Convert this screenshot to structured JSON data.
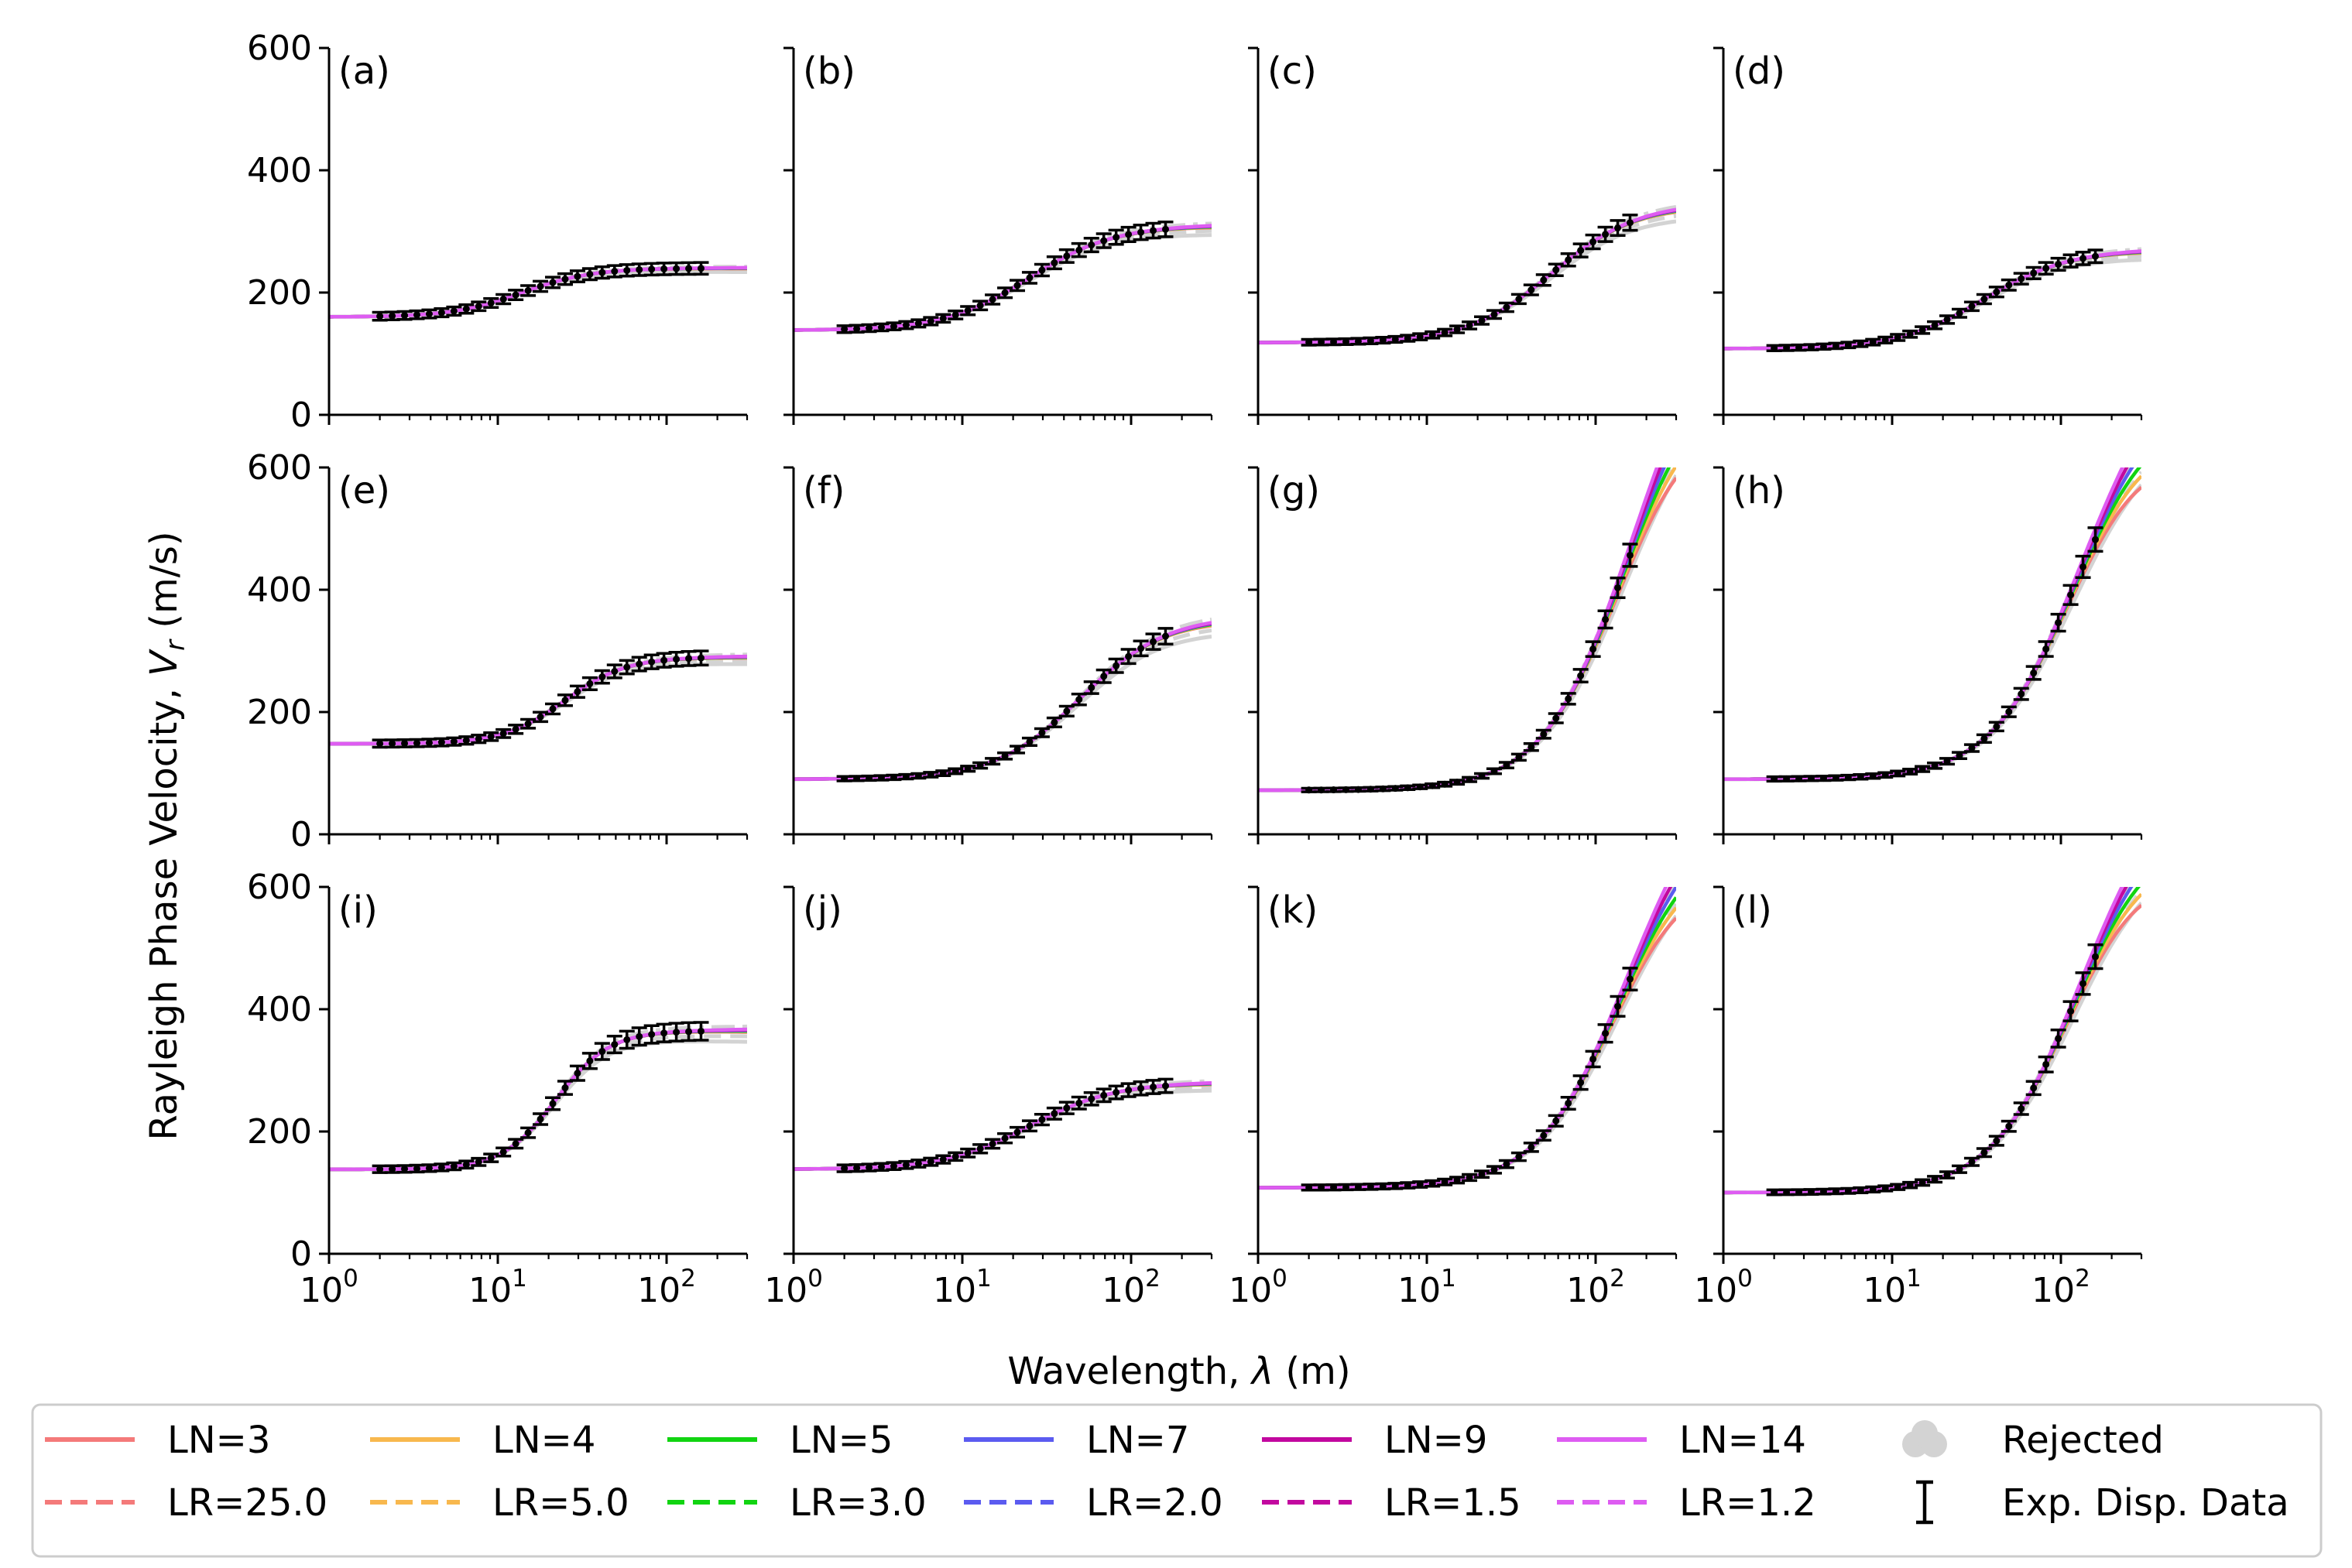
{
  "figure": {
    "ylabel": "Rayleigh Phase Velocity, V_r (m/s)",
    "xlabel": "Wavelength, λ (m)"
  },
  "legend": {
    "items": [
      {
        "label": "LN=3",
        "color": "#f47a7a",
        "style": "solid"
      },
      {
        "label": "LR=25.0",
        "color": "#f47a7a",
        "style": "dashed"
      },
      {
        "label": "LN=4",
        "color": "#f8b84e",
        "style": "solid"
      },
      {
        "label": "LR=5.0",
        "color": "#f8b84e",
        "style": "dashed"
      },
      {
        "label": "LN=5",
        "color": "#11d411",
        "style": "solid"
      },
      {
        "label": "LR=3.0",
        "color": "#11d411",
        "style": "dashed"
      },
      {
        "label": "LN=7",
        "color": "#5b5bf0",
        "style": "solid"
      },
      {
        "label": "LR=2.0",
        "color": "#5b5bf0",
        "style": "dashed"
      },
      {
        "label": "LN=9",
        "color": "#c2089f",
        "style": "solid"
      },
      {
        "label": "LR=1.5",
        "color": "#c2089f",
        "style": "dashed"
      },
      {
        "label": "LN=14",
        "color": "#de5cf2",
        "style": "solid"
      },
      {
        "label": "LR=1.2",
        "color": "#de5cf2",
        "style": "dashed"
      },
      {
        "label": "Rejected",
        "color": "#d3d3d3",
        "style": "patch"
      },
      {
        "label": "Exp. Disp. Data",
        "color": "#000000",
        "style": "errorbar"
      }
    ]
  },
  "chart_data": {
    "type": "line",
    "x_scale": "log",
    "xlim": [
      1,
      300
    ],
    "ylim": [
      0,
      600
    ],
    "x_ticks": [
      {
        "value": 1,
        "label": "10^0"
      },
      {
        "value": 10,
        "label": "10^1"
      },
      {
        "value": 100,
        "label": "10^2"
      }
    ],
    "y_ticks": [
      0,
      200,
      400,
      600
    ],
    "grid": false,
    "legend_position": "bottom",
    "panels": [
      {
        "label": "(a)",
        "vmin": 160,
        "vmax": 240,
        "transition_lambda": 14,
        "width": 0.45,
        "fan": 0
      },
      {
        "label": "(b)",
        "vmin": 138,
        "vmax": 310,
        "transition_lambda": 25,
        "width": 0.55,
        "fan": 0
      },
      {
        "label": "(c)",
        "vmin": 118,
        "vmax": 345,
        "transition_lambda": 55,
        "width": 0.55,
        "fan": 0
      },
      {
        "label": "(d)",
        "vmin": 108,
        "vmax": 270,
        "transition_lambda": 35,
        "width": 0.55,
        "fan": 0
      },
      {
        "label": "(e)",
        "vmin": 148,
        "vmax": 290,
        "transition_lambda": 25,
        "width": 0.4,
        "fan": 0
      },
      {
        "label": "(f)",
        "vmin": 90,
        "vmax": 355,
        "transition_lambda": 50,
        "width": 0.55,
        "fan": 0
      },
      {
        "label": "(g)",
        "vmin": 72,
        "vmax": 800,
        "transition_lambda": 150,
        "width": 0.55,
        "fan": 1
      },
      {
        "label": "(h)",
        "vmin": 90,
        "vmax": 720,
        "transition_lambda": 120,
        "width": 0.55,
        "fan": 1
      },
      {
        "label": "(i)",
        "vmin": 138,
        "vmax": 365,
        "transition_lambda": 22,
        "width": 0.35,
        "fan": 0
      },
      {
        "label": "(j)",
        "vmin": 138,
        "vmax": 280,
        "transition_lambda": 25,
        "width": 0.55,
        "fan": 0
      },
      {
        "label": "(k)",
        "vmin": 108,
        "vmax": 720,
        "transition_lambda": 140,
        "width": 0.55,
        "fan": 1
      },
      {
        "label": "(l)",
        "vmin": 100,
        "vmax": 720,
        "transition_lambda": 120,
        "width": 0.55,
        "fan": 1
      }
    ]
  }
}
